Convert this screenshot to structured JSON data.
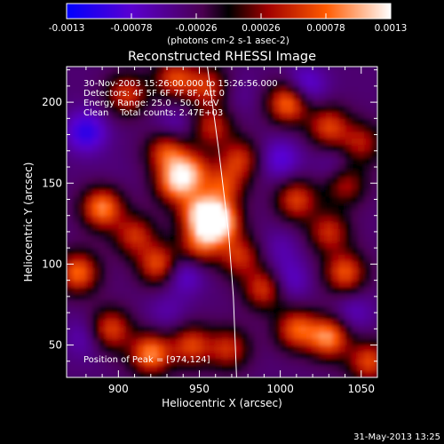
{
  "chart_data": {
    "type": "heatmap",
    "title": "Reconstructed RHESSI Image",
    "xlabel": "Heliocentric X (arcsec)",
    "ylabel": "Heliocentric Y (arcsec)",
    "xlim": [
      868,
      1060
    ],
    "ylim": [
      30,
      222
    ],
    "x_ticks": [
      900,
      950,
      1000,
      1050
    ],
    "y_ticks": [
      50,
      100,
      150,
      200
    ],
    "colorbar": {
      "min": -0.0013,
      "max": 0.0013,
      "ticks": [
        "-0.0013",
        "-0.00078",
        "-0.00026",
        "0.00026",
        "0.00078",
        "0.0013"
      ],
      "unit_label": "(photons cm-2 s-1 asec-2)"
    },
    "annotations": [
      "30-Nov-2003 15:26:00.000 to 15:26:56.000",
      "Detectors: 4F 5F 6F 7F 8F, Att 0",
      "Energy Range: 25.0 - 50.0 keV",
      "Clean    Total counts: 2.47E+03"
    ],
    "peak_label": "Position of Peak = [974,124]",
    "peak": {
      "x": 974,
      "y": 124
    },
    "limb_curve": [
      [
        955,
        222
      ],
      [
        962,
        170
      ],
      [
        968,
        120
      ],
      [
        971,
        80
      ],
      [
        973,
        30
      ]
    ],
    "sources": [
      {
        "x": 962,
        "y": 126,
        "value": 0.00125
      },
      {
        "x": 950,
        "y": 132,
        "value": 0.0008
      },
      {
        "x": 945,
        "y": 158,
        "value": 0.0006
      },
      {
        "x": 935,
        "y": 150,
        "value": 0.00075
      },
      {
        "x": 965,
        "y": 148,
        "value": 0.0005
      },
      {
        "x": 975,
        "y": 165,
        "value": 0.0005
      },
      {
        "x": 930,
        "y": 170,
        "value": 0.00065
      },
      {
        "x": 958,
        "y": 185,
        "value": 0.00045
      },
      {
        "x": 950,
        "y": 112,
        "value": 0.0006
      },
      {
        "x": 975,
        "y": 105,
        "value": 0.0005
      },
      {
        "x": 925,
        "y": 100,
        "value": 0.0007
      },
      {
        "x": 890,
        "y": 135,
        "value": 0.0009
      },
      {
        "x": 910,
        "y": 118,
        "value": 0.0005
      },
      {
        "x": 905,
        "y": 205,
        "value": 0.00055
      },
      {
        "x": 935,
        "y": 215,
        "value": 0.0006
      },
      {
        "x": 955,
        "y": 210,
        "value": 0.0005
      },
      {
        "x": 1005,
        "y": 200,
        "value": 0.0009
      },
      {
        "x": 1030,
        "y": 185,
        "value": 0.0006
      },
      {
        "x": 1010,
        "y": 140,
        "value": 0.0006
      },
      {
        "x": 1030,
        "y": 120,
        "value": 0.0005
      },
      {
        "x": 1040,
        "y": 150,
        "value": 0.00045
      },
      {
        "x": 1050,
        "y": 175,
        "value": 0.0004
      },
      {
        "x": 990,
        "y": 85,
        "value": 0.0006
      },
      {
        "x": 1040,
        "y": 95,
        "value": 0.0007
      },
      {
        "x": 1010,
        "y": 60,
        "value": 0.0007
      },
      {
        "x": 1030,
        "y": 55,
        "value": 0.0009
      },
      {
        "x": 1055,
        "y": 40,
        "value": 0.00065
      },
      {
        "x": 875,
        "y": 95,
        "value": 0.0008
      },
      {
        "x": 895,
        "y": 60,
        "value": 0.00065
      },
      {
        "x": 920,
        "y": 45,
        "value": 0.0009
      },
      {
        "x": 945,
        "y": 50,
        "value": 0.0006
      },
      {
        "x": 968,
        "y": 48,
        "value": 0.0005
      },
      {
        "x": 880,
        "y": 182,
        "value": -0.00105
      },
      {
        "x": 935,
        "y": 185,
        "value": -0.0007
      },
      {
        "x": 940,
        "y": 95,
        "value": -0.0009
      },
      {
        "x": 1000,
        "y": 165,
        "value": -0.00085
      },
      {
        "x": 1035,
        "y": 160,
        "value": -0.0007
      },
      {
        "x": 1015,
        "y": 210,
        "value": -0.00095
      },
      {
        "x": 1000,
        "y": 110,
        "value": -0.0006
      },
      {
        "x": 1005,
        "y": 90,
        "value": -0.0008
      },
      {
        "x": 930,
        "y": 70,
        "value": -0.0006
      },
      {
        "x": 880,
        "y": 55,
        "value": -0.0007
      },
      {
        "x": 1045,
        "y": 70,
        "value": -0.0007
      },
      {
        "x": 975,
        "y": 205,
        "value": -0.0005
      },
      {
        "x": 895,
        "y": 155,
        "value": -0.0004
      }
    ]
  },
  "footer": {
    "date": "31-May-2013 13:25"
  }
}
